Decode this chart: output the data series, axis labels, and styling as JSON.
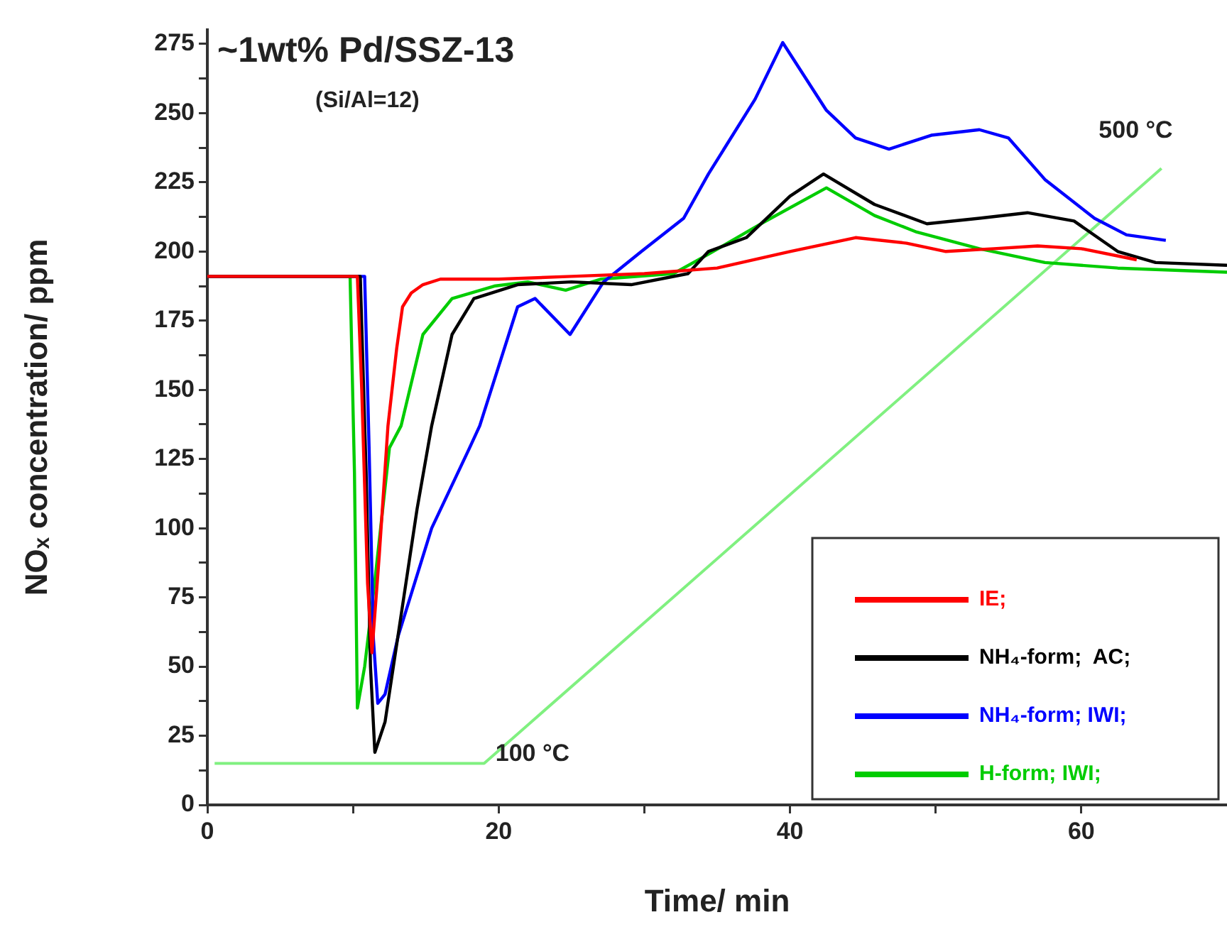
{
  "chart_data": {
    "type": "line",
    "title": "~1wt% Pd/SSZ-13",
    "subtitle": "(Si/Al=12)",
    "xlabel": "Time/ min",
    "ylabel": "NOₓ concentration/ ppm",
    "xlim": [
      0,
      70
    ],
    "xticks": [
      0,
      {
        "value": 10,
        "label": null
      },
      20,
      {
        "value": 30,
        "label": null
      },
      40,
      {
        "value": 50,
        "label": null
      },
      60
    ],
    "ylim": [
      0,
      280
    ],
    "yticks": [
      0,
      {
        "value": 12.5,
        "label": null
      },
      25,
      {
        "value": 37.5,
        "label": null
      },
      50,
      {
        "value": 62.5,
        "label": null
      },
      75,
      {
        "value": 87.5,
        "label": null
      },
      100,
      {
        "value": 112.5,
        "label": null
      },
      125,
      {
        "value": 137.5,
        "label": null
      },
      150,
      {
        "value": 162.5,
        "label": null
      },
      175,
      {
        "value": 187.5,
        "label": null
      },
      200,
      {
        "value": 212.5,
        "label": null
      },
      225,
      {
        "value": 237.5,
        "label": null
      },
      250,
      {
        "value": 262.5,
        "label": null
      },
      275
    ],
    "grid": false,
    "legend": "bottom right",
    "marker": "none",
    "line_style": "solid",
    "series": [
      {
        "name": "IE;",
        "color": "#ff0000",
        "x": [
          0,
          10.3,
          10.6,
          11,
          11.3,
          11.8,
          12.4,
          13,
          13.4,
          14,
          14.8,
          16,
          18,
          20,
          25,
          30,
          35,
          40,
          44.5,
          48,
          50.7,
          54,
          57,
          60,
          63.8
        ],
        "values": [
          191,
          191,
          150,
          80,
          55,
          90,
          137,
          165,
          180,
          185,
          188,
          190,
          190,
          190,
          191,
          192,
          194,
          200,
          205,
          203,
          200,
          201,
          202,
          201,
          197
        ]
      },
      {
        "name": "NH₄-form;  AC;",
        "color": "#000000",
        "x": [
          0,
          10.5,
          10.9,
          11.2,
          11.5,
          12.2,
          12.9,
          14.4,
          15.4,
          16.8,
          18.3,
          21.3,
          25,
          29.1,
          33,
          34.4,
          37,
          40,
          42.3,
          45.8,
          49.4,
          53,
          56.3,
          59.5,
          62.5,
          65.1,
          70
        ],
        "values": [
          191,
          191,
          120,
          50,
          19,
          30,
          54.5,
          107,
          137,
          170,
          183,
          188,
          189,
          188,
          192,
          200,
          205,
          220,
          228,
          217,
          210,
          212,
          214,
          211,
          200,
          196,
          195
        ]
      },
      {
        "name": "NH₄-form; IWI;",
        "color": "#0000ff",
        "x": [
          0,
          10.8,
          11.1,
          11.4,
          11.7,
          12.2,
          13.1,
          15.4,
          18,
          18.7,
          21.3,
          22.5,
          24.9,
          27.2,
          29.8,
          32.7,
          34.4,
          37.6,
          39.5,
          42.5,
          44.5,
          46.8,
          49.7,
          53,
          55,
          57.5,
          60.9,
          63.1,
          65.8
        ],
        "values": [
          191,
          191,
          130,
          60,
          36.7,
          40,
          61,
          100,
          129,
          137,
          180,
          183,
          170,
          189,
          200,
          212,
          228,
          255,
          275.5,
          251,
          241,
          237,
          242,
          244,
          241,
          226,
          212,
          206,
          204
        ]
      },
      {
        "name": "H-form; IWI;",
        "color": "#00cc00",
        "x": [
          0,
          9.8,
          10.1,
          10.3,
          10.8,
          11.5,
          12.5,
          13.3,
          14.8,
          16.8,
          19.7,
          22,
          24.6,
          27,
          32,
          34.4,
          38,
          42.5,
          45.8,
          48.7,
          53,
          57.5,
          62.5,
          70
        ],
        "values": [
          191,
          191,
          120,
          35,
          50,
          81,
          129,
          137,
          170,
          183,
          187.5,
          189,
          186,
          190,
          192,
          199,
          210,
          223,
          213,
          207,
          201,
          196,
          194,
          192.5
        ]
      },
      {
        "color": "#80f080",
        "x": [
          0.5,
          19,
          65.5
        ],
        "values": [
          15,
          15,
          230
        ]
      }
    ],
    "annotations": [
      {
        "text": "100 °C",
        "x": 19,
        "y": 15
      },
      {
        "text": "500 °C",
        "x": 65.5,
        "y": 230
      }
    ]
  }
}
